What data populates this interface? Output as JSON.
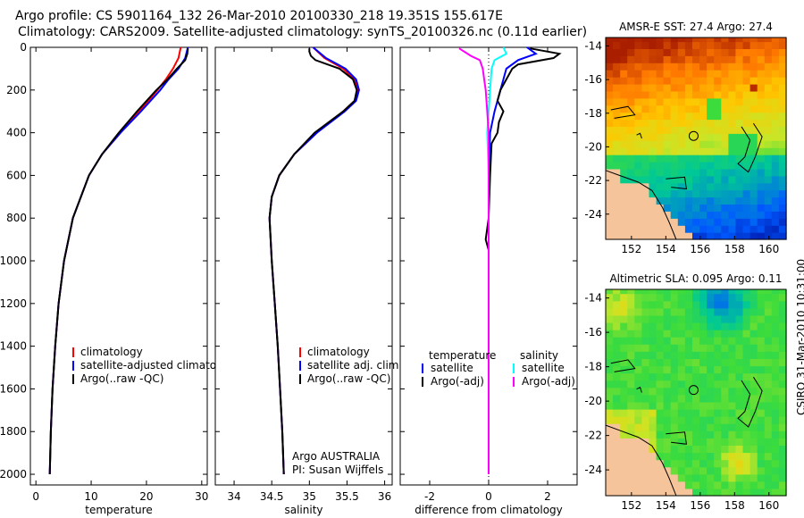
{
  "titles": {
    "line1": "Argo profile: CS 5901164_132 26-Mar-2010 20100330_218 19.351S 155.617E",
    "line2": "Climatology: CARS2009. Satellite-adjusted climatology: synTS_20100326.nc (0.11d earlier)"
  },
  "stamp": "CSIRO 31-Mar-2010 10:31:00",
  "colors": {
    "climatology": "#ff0000",
    "satellite": "#0000ff",
    "argo": "#000000",
    "magenta": "#ff00ff",
    "cyan": "#00ffff"
  },
  "chart_data": [
    {
      "id": "temperature",
      "type": "line",
      "xlabel": "temperature",
      "xlim": [
        -1,
        31
      ],
      "ylim": [
        0,
        2050
      ],
      "xticks": [
        0,
        10,
        20,
        30
      ],
      "yticks": [
        0,
        200,
        400,
        600,
        800,
        1000,
        1200,
        1400,
        1600,
        1800,
        2000
      ],
      "legend": [
        "climatology",
        "satellite-adjusted climatology",
        "Argo(..raw -QC)"
      ],
      "series": [
        {
          "name": "climatology",
          "color": "red",
          "depth": [
            0,
            50,
            100,
            150,
            200,
            300,
            400,
            500,
            600,
            800,
            1000,
            1200,
            1400,
            1600,
            1800,
            2000
          ],
          "values": [
            26.2,
            25.8,
            24.8,
            23.5,
            22.0,
            18.7,
            15.3,
            12.0,
            9.6,
            6.7,
            5.1,
            4.1,
            3.5,
            3.0,
            2.7,
            2.5
          ]
        },
        {
          "name": "satellite-adjusted climatology",
          "color": "blue",
          "depth": [
            0,
            50,
            100,
            150,
            200,
            300,
            400,
            500,
            600,
            800,
            1000,
            1200,
            1400,
            1600,
            1800,
            2000
          ],
          "values": [
            27.5,
            27.0,
            25.8,
            24.0,
            22.5,
            19.0,
            15.3,
            12.0,
            9.6,
            6.7,
            5.1,
            4.1,
            3.5,
            3.0,
            2.7,
            2.5
          ]
        },
        {
          "name": "Argo(..raw -QC)",
          "color": "black",
          "depth": [
            5,
            30,
            60,
            100,
            150,
            200,
            300,
            400,
            500,
            600,
            800,
            1000,
            1200,
            1400,
            1600,
            1800,
            2000
          ],
          "values": [
            27.5,
            27.4,
            27.0,
            25.5,
            23.8,
            21.8,
            18.3,
            15.0,
            12.0,
            9.6,
            6.7,
            5.1,
            4.1,
            3.5,
            3.0,
            2.7,
            2.5
          ]
        }
      ]
    },
    {
      "id": "salinity",
      "type": "line",
      "xlabel": "salinity",
      "xlim": [
        33.75,
        36.1
      ],
      "ylim": [
        0,
        2050
      ],
      "xticks": [
        34,
        34.5,
        35,
        35.5,
        36
      ],
      "yticks": [
        0,
        200,
        400,
        600,
        800,
        1000,
        1200,
        1400,
        1600,
        1800,
        2000
      ],
      "legend": [
        "climatology",
        "satellite adj. clim.",
        "Argo(..raw -QC)"
      ],
      "annotation": [
        "Argo AUSTRALIA",
        "PI: Susan Wijffels"
      ],
      "series": [
        {
          "name": "climatology",
          "color": "red",
          "depth": [
            0,
            50,
            100,
            150,
            200,
            250,
            300,
            400,
            500,
            600,
            700,
            800,
            1000,
            1200,
            1400,
            1600,
            1800,
            2000
          ],
          "values": [
            35.05,
            35.2,
            35.45,
            35.6,
            35.65,
            35.6,
            35.45,
            35.1,
            34.8,
            34.6,
            34.5,
            34.47,
            34.5,
            34.54,
            34.58,
            34.61,
            34.64,
            34.66
          ]
        },
        {
          "name": "satellite adj. clim.",
          "color": "blue",
          "depth": [
            0,
            50,
            100,
            150,
            200,
            250,
            300,
            400,
            500,
            600,
            700,
            800,
            1000,
            1200,
            1400,
            1600,
            1800,
            2000
          ],
          "values": [
            35.05,
            35.22,
            35.48,
            35.62,
            35.66,
            35.62,
            35.47,
            35.1,
            34.8,
            34.6,
            34.5,
            34.47,
            34.5,
            34.54,
            34.58,
            34.61,
            34.64,
            34.66
          ]
        },
        {
          "name": "Argo(..raw -QC)",
          "color": "black",
          "depth": [
            5,
            20,
            40,
            60,
            100,
            150,
            200,
            250,
            300,
            400,
            500,
            600,
            700,
            800,
            1000,
            1200,
            1400,
            1600,
            1800,
            2000
          ],
          "values": [
            35.0,
            35.0,
            35.02,
            35.08,
            35.4,
            35.58,
            35.63,
            35.6,
            35.45,
            35.07,
            34.8,
            34.6,
            34.5,
            34.47,
            34.5,
            34.54,
            34.58,
            34.61,
            34.64,
            34.66
          ]
        }
      ]
    },
    {
      "id": "difference",
      "type": "line",
      "xlabel": "difference from climatology",
      "xlim": [
        -3,
        3
      ],
      "ylim": [
        0,
        2050
      ],
      "xticks": [
        -2,
        0,
        2
      ],
      "yticks": [
        0,
        200,
        400,
        600,
        800,
        1000,
        1200,
        1400,
        1600,
        1800,
        2000
      ],
      "legend_headers": [
        "temperature",
        "salinity"
      ],
      "legend": [
        "satellite",
        "Argo(-adj)",
        "satellite",
        "Argo(-adj)"
      ],
      "series": [
        {
          "name": "temperature satellite",
          "color": "blue",
          "depth": [
            0,
            30,
            60,
            100,
            150,
            200,
            300,
            400,
            600,
            800,
            1000,
            1500,
            2000
          ],
          "values": [
            1.3,
            1.6,
            1.0,
            0.6,
            0.5,
            0.4,
            0.2,
            0.05,
            0,
            0,
            0,
            0,
            0
          ]
        },
        {
          "name": "temperature Argo(-adj)",
          "color": "black",
          "depth": [
            5,
            30,
            50,
            80,
            100,
            150,
            200,
            250,
            300,
            350,
            400,
            450,
            600,
            800,
            900,
            950,
            1000,
            1500,
            2000
          ],
          "values": [
            1.4,
            2.4,
            2.2,
            1.0,
            0.8,
            0.6,
            0.4,
            0.3,
            0.5,
            0.35,
            0.3,
            0.1,
            0.05,
            0,
            -0.1,
            0,
            0,
            0,
            0
          ]
        },
        {
          "name": "salinity satellite",
          "color": "cyan",
          "depth": [
            0,
            30,
            60,
            100,
            200,
            300,
            400,
            600,
            800,
            1000,
            1500,
            2000
          ],
          "values": [
            0.5,
            0.6,
            0.2,
            0.1,
            0.05,
            0,
            -0.05,
            0,
            0,
            0,
            0,
            0
          ]
        },
        {
          "name": "salinity Argo(-adj)",
          "color": "magenta",
          "depth": [
            5,
            40,
            60,
            100,
            150,
            200,
            300,
            400,
            600,
            800,
            1000,
            1500,
            2000
          ],
          "values": [
            -1.0,
            -0.6,
            -0.3,
            -0.2,
            -0.15,
            -0.1,
            -0.05,
            0,
            0,
            0,
            0,
            0,
            0
          ]
        }
      ]
    },
    {
      "id": "sst-map",
      "type": "heatmap",
      "title": "AMSR-E SST: 27.4 Argo: 27.4",
      "xlim": [
        150.5,
        161
      ],
      "ylim": [
        -25.5,
        -13.5
      ],
      "xticks": [
        152,
        154,
        156,
        158,
        160
      ],
      "yticks": [
        -14,
        -16,
        -18,
        -20,
        -22,
        -24
      ],
      "marker": {
        "lon": 155.617,
        "lat": -19.351
      }
    },
    {
      "id": "sla-map",
      "type": "heatmap",
      "title": "Altimetric SLA: 0.095 Argo: 0.11",
      "xlim": [
        150.5,
        161
      ],
      "ylim": [
        -25.5,
        -13.5
      ],
      "xticks": [
        152,
        154,
        156,
        158,
        160
      ],
      "yticks": [
        -14,
        -16,
        -18,
        -20,
        -22,
        -24
      ],
      "marker": {
        "lon": 155.617,
        "lat": -19.351
      }
    }
  ]
}
